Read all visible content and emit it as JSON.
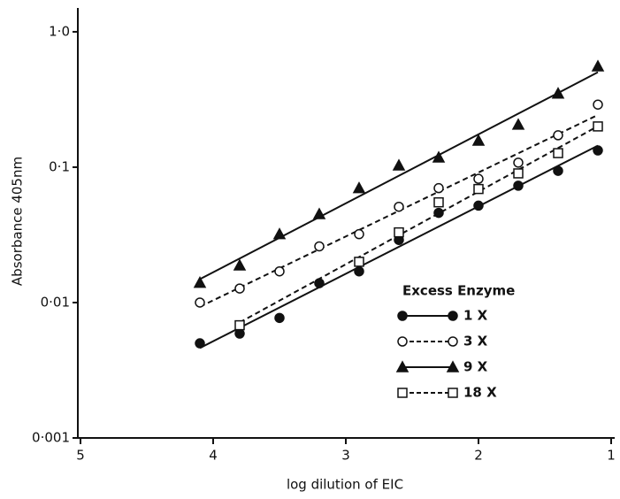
{
  "chart_data": {
    "type": "scatter",
    "x_label": "log dilution of EIC",
    "y_label": "Absorbance   405nm",
    "legend_title": "Excess Enzyme",
    "legend_position": "lower right",
    "y_log": true,
    "xlim": [
      5,
      1
    ],
    "xticks": [
      5,
      4,
      3,
      2,
      1
    ],
    "ylim": [
      0.001,
      1.5
    ],
    "yticks": [
      {
        "value": 1,
        "label": "1·0"
      },
      {
        "value": 0.1,
        "label": "0·1"
      },
      {
        "value": 0.01,
        "label": "0·01"
      },
      {
        "value": 0.001,
        "label": "0·001"
      }
    ],
    "x": [
      4.1,
      3.8,
      3.5,
      3.2,
      2.9,
      2.6,
      2.3,
      2.0,
      1.7,
      1.4,
      1.1
    ],
    "series": [
      {
        "name": "1 X",
        "color": "#111111",
        "marker": "circle",
        "filled": true,
        "dashed": false,
        "values": [
          0.005,
          0.0059,
          0.0077,
          0.0139,
          0.017,
          0.029,
          0.046,
          0.052,
          0.073,
          0.094,
          0.133
        ]
      },
      {
        "name": "3 X",
        "color": "#111111",
        "marker": "circle",
        "filled": false,
        "dashed": true,
        "values": [
          0.01,
          0.0127,
          0.017,
          0.026,
          0.032,
          0.051,
          0.07,
          0.082,
          0.108,
          0.172,
          0.29
        ]
      },
      {
        "name": "9 X",
        "color": "#111111",
        "marker": "triangle",
        "filled": true,
        "dashed": false,
        "values": [
          0.014,
          0.0188,
          0.032,
          0.045,
          0.07,
          0.103,
          0.118,
          0.157,
          0.206,
          0.35,
          0.556
        ]
      },
      {
        "name": "18 X",
        "color": "#111111",
        "marker": "square",
        "filled": false,
        "dashed": true,
        "values": [
          null,
          0.0068,
          null,
          null,
          0.02,
          0.033,
          0.055,
          0.069,
          0.09,
          0.127,
          0.2
        ]
      }
    ]
  }
}
